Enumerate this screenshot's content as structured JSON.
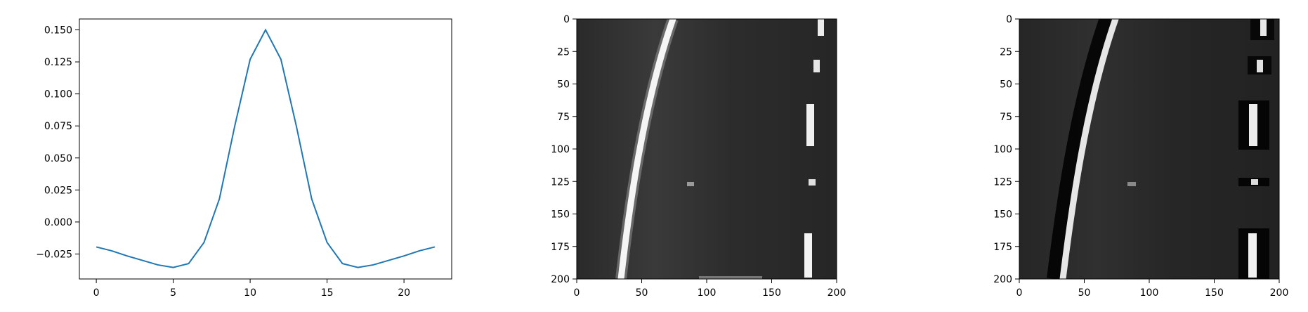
{
  "chart_data": [
    {
      "type": "line",
      "title": "",
      "xlabel": "",
      "ylabel": "",
      "x": [
        0,
        1,
        2,
        3,
        4,
        5,
        6,
        7,
        8,
        9,
        10,
        11,
        12,
        13,
        14,
        15,
        16,
        17,
        18,
        19,
        20,
        21,
        22
      ],
      "series": [
        {
          "color": "#1f77b4",
          "values": [
            -0.0195,
            -0.0225,
            -0.0265,
            -0.03,
            -0.0335,
            -0.0355,
            -0.0325,
            -0.016,
            0.018,
            0.075,
            0.127,
            0.15,
            0.127,
            0.075,
            0.018,
            -0.016,
            -0.0325,
            -0.0355,
            -0.0335,
            -0.03,
            -0.0265,
            -0.0225,
            -0.0195
          ]
        }
      ],
      "xlim": [
        -1.1,
        23.1
      ],
      "ylim": [
        -0.0445,
        0.1585
      ],
      "xticks": [
        "0",
        "5",
        "10",
        "15",
        "20"
      ],
      "xtick_values": [
        0,
        5,
        10,
        15,
        20
      ],
      "yticks": [
        "0.150",
        "0.125",
        "0.100",
        "0.075",
        "0.050",
        "0.025",
        "0.000",
        "−0.025"
      ],
      "ytick_values": [
        0.15,
        0.125,
        0.1,
        0.075,
        0.05,
        0.025,
        0.0,
        -0.025
      ],
      "grid": false
    },
    {
      "type": "image",
      "title": "",
      "xlim": [
        0,
        200
      ],
      "ylim": [
        200,
        0
      ],
      "xticks": [
        "0",
        "50",
        "100",
        "150",
        "200"
      ],
      "xtick_values": [
        0,
        50,
        100,
        150,
        200
      ],
      "yticks": [
        "0",
        "25",
        "50",
        "75",
        "100",
        "125",
        "150",
        "175",
        "200"
      ],
      "ytick_values": [
        0,
        25,
        50,
        75,
        100,
        125,
        150,
        175,
        200
      ]
    },
    {
      "type": "image",
      "title": "",
      "xlim": [
        0,
        200
      ],
      "ylim": [
        200,
        0
      ],
      "xticks": [
        "0",
        "50",
        "100",
        "150",
        "200"
      ],
      "xtick_values": [
        0,
        50,
        100,
        150,
        200
      ],
      "yticks": [
        "0",
        "25",
        "50",
        "75",
        "100",
        "125",
        "150",
        "175",
        "200"
      ],
      "ytick_values": [
        0,
        25,
        50,
        75,
        100,
        125,
        150,
        175,
        200
      ]
    }
  ]
}
